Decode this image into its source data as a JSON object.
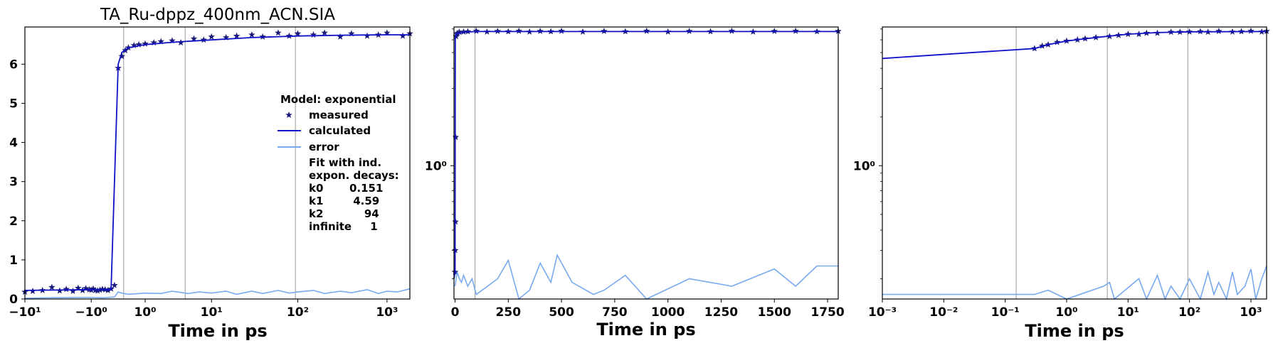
{
  "title": "TA_Ru-dppz_400nm_ACN.SIA",
  "legend": {
    "title": "Model: exponential",
    "items": [
      "measured",
      "calculated",
      "error"
    ],
    "fit_lines": [
      "Fit with ind.",
      "expon. decays:",
      "k0       0.151",
      "k1        4.59",
      "k2           94",
      "infinite     1"
    ]
  },
  "colors": {
    "measured": "#1a1a7a",
    "calculated": "#1010c8",
    "error": "#78aaf0",
    "vline": "#999999"
  },
  "chart_data": [
    {
      "type": "line",
      "panel": "left",
      "xscale": "symlog",
      "xlabel": "Time in ps",
      "xlim": [
        -10,
        1800
      ],
      "ylim": [
        0,
        6.95
      ],
      "xtick_labels": [
        "−10¹",
        "−10⁰",
        "10⁰",
        "10¹",
        "10²",
        "10³"
      ],
      "xtick_values": [
        -10,
        -1,
        1,
        10,
        100,
        1000
      ],
      "ytick_values": [
        0,
        1,
        2,
        3,
        4,
        5,
        6
      ],
      "vlines": [
        0.151,
        4.59,
        94
      ],
      "series": [
        {
          "name": "measured",
          "style": "stars",
          "x": [
            -10,
            -8,
            -6,
            -4.5,
            -3.5,
            -2.8,
            -2.2,
            -1.8,
            -1.5,
            -1.3,
            -1.1,
            -1.0,
            -0.9,
            -0.8,
            -0.7,
            -0.6,
            -0.5,
            -0.4,
            -0.3,
            -0.2,
            -0.1,
            0,
            0.1,
            0.2,
            0.3,
            0.5,
            0.7,
            1,
            1.5,
            2,
            3,
            4,
            6,
            8,
            10,
            15,
            20,
            30,
            40,
            60,
            80,
            100,
            150,
            200,
            300,
            400,
            600,
            800,
            1000,
            1500,
            1800
          ],
          "y": [
            0.18,
            0.2,
            0.22,
            0.3,
            0.21,
            0.25,
            0.2,
            0.28,
            0.22,
            0.27,
            0.24,
            0.23,
            0.26,
            0.22,
            0.21,
            0.23,
            0.25,
            0.24,
            0.22,
            0.26,
            0.35,
            5.9,
            6.2,
            6.35,
            6.42,
            6.48,
            6.5,
            6.52,
            6.55,
            6.58,
            6.6,
            6.55,
            6.65,
            6.62,
            6.7,
            6.68,
            6.72,
            6.75,
            6.7,
            6.8,
            6.72,
            6.78,
            6.75,
            6.8,
            6.7,
            6.78,
            6.72,
            6.75,
            6.8,
            6.72,
            6.78
          ]
        },
        {
          "name": "calculated",
          "style": "line",
          "x": [
            -10,
            -1,
            -0.2,
            0,
            0.1,
            0.3,
            1,
            3,
            10,
            30,
            100,
            300,
            1000,
            1800
          ],
          "y": [
            0.22,
            0.24,
            0.24,
            6.0,
            6.3,
            6.42,
            6.5,
            6.56,
            6.62,
            6.68,
            6.72,
            6.74,
            6.75,
            6.75
          ]
        },
        {
          "name": "error",
          "style": "line",
          "x": [
            -10,
            -5,
            -2,
            -1,
            -0.5,
            -0.1,
            0,
            0.1,
            0.3,
            1,
            2,
            3,
            5,
            7,
            10,
            15,
            20,
            30,
            40,
            60,
            80,
            100,
            150,
            200,
            300,
            400,
            600,
            800,
            1000,
            1300,
            1800
          ],
          "y": [
            0.02,
            0.03,
            0.04,
            0.04,
            0.03,
            0.05,
            0.18,
            0.15,
            0.12,
            0.15,
            0.14,
            0.2,
            0.14,
            0.18,
            0.15,
            0.2,
            0.12,
            0.2,
            0.14,
            0.22,
            0.15,
            0.18,
            0.22,
            0.14,
            0.2,
            0.16,
            0.24,
            0.14,
            0.2,
            0.18,
            0.26
          ]
        }
      ]
    },
    {
      "type": "line",
      "panel": "middle",
      "xscale": "linear",
      "yscale": "log",
      "xlabel": "Time in ps",
      "xlim": [
        -5,
        1800
      ],
      "ylim": [
        0.15,
        7.2
      ],
      "xtick_values": [
        0,
        250,
        500,
        750,
        1000,
        1250,
        1500,
        1750
      ],
      "ytick_labels": [
        "10⁰"
      ],
      "ytick_values": [
        1
      ],
      "vlines": [
        94
      ],
      "series": [
        {
          "name": "measured",
          "style": "stars",
          "x": [
            0,
            1,
            2,
            3,
            5,
            8,
            12,
            20,
            40,
            60,
            100,
            150,
            200,
            250,
            300,
            350,
            400,
            450,
            500,
            600,
            700,
            800,
            900,
            1000,
            1100,
            1200,
            1300,
            1400,
            1500,
            1600,
            1700,
            1800
          ],
          "y": [
            0.22,
            0.3,
            0.45,
            1.5,
            6.3,
            6.5,
            6.6,
            6.7,
            6.72,
            6.75,
            6.8,
            6.72,
            6.78,
            6.75,
            6.8,
            6.72,
            6.78,
            6.75,
            6.8,
            6.72,
            6.78,
            6.75,
            6.8,
            6.72,
            6.78,
            6.75,
            6.8,
            6.72,
            6.78,
            6.8,
            6.75,
            6.78
          ]
        },
        {
          "name": "calculated",
          "style": "line",
          "x": [
            -5,
            0,
            1,
            3,
            10,
            50,
            100,
            1800
          ],
          "y": [
            0.2,
            0.22,
            6.0,
            6.45,
            6.55,
            6.7,
            6.75,
            6.75
          ]
        },
        {
          "name": "error",
          "style": "line",
          "x": [
            0,
            10,
            20,
            30,
            40,
            60,
            80,
            100,
            200,
            250,
            300,
            350,
            400,
            450,
            480,
            550,
            650,
            700,
            800,
            900,
            1100,
            1300,
            1500,
            1600,
            1700,
            1800
          ],
          "y": [
            0.18,
            0.22,
            0.2,
            0.19,
            0.21,
            0.18,
            0.2,
            0.16,
            0.2,
            0.26,
            0.15,
            0.17,
            0.25,
            0.19,
            0.28,
            0.19,
            0.16,
            0.17,
            0.21,
            0.15,
            0.2,
            0.18,
            0.23,
            0.18,
            0.24,
            0.24
          ]
        }
      ]
    },
    {
      "type": "line",
      "panel": "right",
      "xscale": "log",
      "yscale": "log",
      "xlabel": "Time in ps",
      "xlim": [
        0.001,
        1800
      ],
      "ylim": [
        0.15,
        7.2
      ],
      "xtick_labels": [
        "10⁻³",
        "10⁻²",
        "10⁻¹",
        "10⁰",
        "10¹",
        "10²",
        "10³"
      ],
      "xtick_values": [
        0.001,
        0.01,
        0.1,
        1,
        10,
        100,
        1000
      ],
      "ytick_labels": [
        "10⁰"
      ],
      "ytick_values": [
        1
      ],
      "vlines": [
        0.151,
        4.59,
        94
      ],
      "series": [
        {
          "name": "measured",
          "style": "stars",
          "x": [
            0.3,
            0.4,
            0.5,
            0.7,
            1,
            1.5,
            2,
            3,
            5,
            7,
            10,
            15,
            20,
            30,
            50,
            70,
            100,
            150,
            200,
            300,
            500,
            700,
            1000,
            1500,
            1800
          ],
          "y": [
            5.3,
            5.5,
            5.6,
            5.8,
            5.9,
            6.0,
            6.1,
            6.2,
            6.3,
            6.4,
            6.5,
            6.5,
            6.6,
            6.6,
            6.7,
            6.7,
            6.72,
            6.75,
            6.7,
            6.78,
            6.72,
            6.75,
            6.8,
            6.72,
            6.78
          ]
        },
        {
          "name": "calculated",
          "style": "line",
          "x": [
            0.001,
            0.3,
            0.5,
            1,
            3,
            10,
            30,
            100,
            1800
          ],
          "y": [
            4.6,
            5.3,
            5.6,
            5.9,
            6.2,
            6.5,
            6.65,
            6.72,
            6.75
          ]
        },
        {
          "name": "error",
          "style": "line",
          "x": [
            0.001,
            0.3,
            0.5,
            0.7,
            1,
            4,
            5,
            6,
            15,
            20,
            30,
            40,
            50,
            70,
            100,
            150,
            200,
            250,
            300,
            400,
            500,
            600,
            800,
            1000,
            1200,
            1500,
            1800
          ],
          "y": [
            0.16,
            0.16,
            0.17,
            0.16,
            0.15,
            0.18,
            0.19,
            0.15,
            0.2,
            0.15,
            0.21,
            0.15,
            0.18,
            0.15,
            0.2,
            0.15,
            0.22,
            0.16,
            0.19,
            0.15,
            0.22,
            0.16,
            0.18,
            0.23,
            0.15,
            0.2,
            0.24
          ]
        }
      ]
    }
  ]
}
